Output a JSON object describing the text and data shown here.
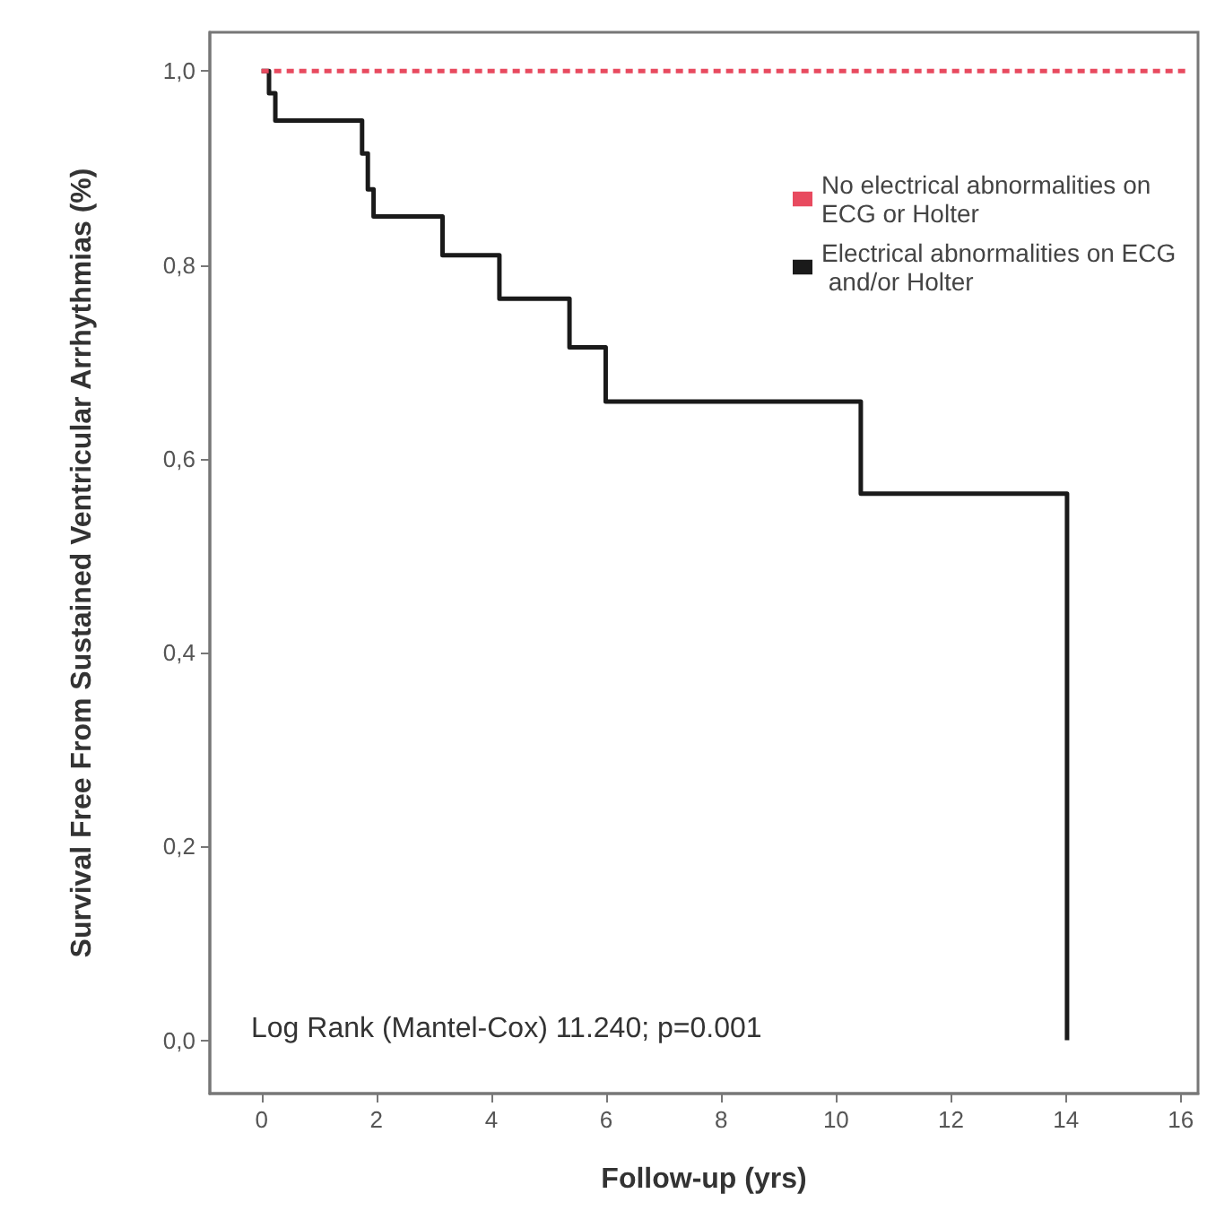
{
  "chart_data": {
    "type": "step",
    "xlabel": "Follow-up (yrs)",
    "ylabel": "Survival Free From Sustained Ventricular Arrhythmias (%)",
    "xlim": [
      -0.9,
      16.3
    ],
    "xticks": [
      0,
      2,
      4,
      6,
      8,
      10,
      12,
      14,
      16
    ],
    "ylim": [
      -0.055,
      1.04
    ],
    "yticks": [
      {
        "value": 0,
        "label": "0,0"
      },
      {
        "value": 0.2,
        "label": "0,2"
      },
      {
        "value": 0.4,
        "label": "0,4"
      },
      {
        "value": 0.6,
        "label": "0,6"
      },
      {
        "value": 0.8,
        "label": "0,8"
      },
      {
        "value": 1,
        "label": "1,0"
      }
    ],
    "series": [
      {
        "name": "No electrical abnormalities on ECG or Holter",
        "color": "#e84a5f",
        "line_style": "dashed",
        "x": [
          0,
          16.1
        ],
        "values": [
          1,
          1
        ]
      },
      {
        "name": "Electrical abnormalities on ECG and/or Holter",
        "color": "#1a1a1a",
        "line_style": "solid",
        "x": [
          0,
          0.13,
          0.24,
          1.75,
          1.85,
          1.95,
          3.15,
          4.14,
          5.36,
          5.99,
          10.43,
          14.02
        ],
        "values": [
          1,
          0.977,
          0.949,
          0.915,
          0.878,
          0.85,
          0.81,
          0.765,
          0.715,
          0.659,
          0.564,
          0
        ]
      }
    ],
    "annotations": [
      "Log Rank (Mantel-Cox) 11.240; p=0.001"
    ],
    "legend": "top right",
    "grid": false,
    "marker": "none"
  }
}
